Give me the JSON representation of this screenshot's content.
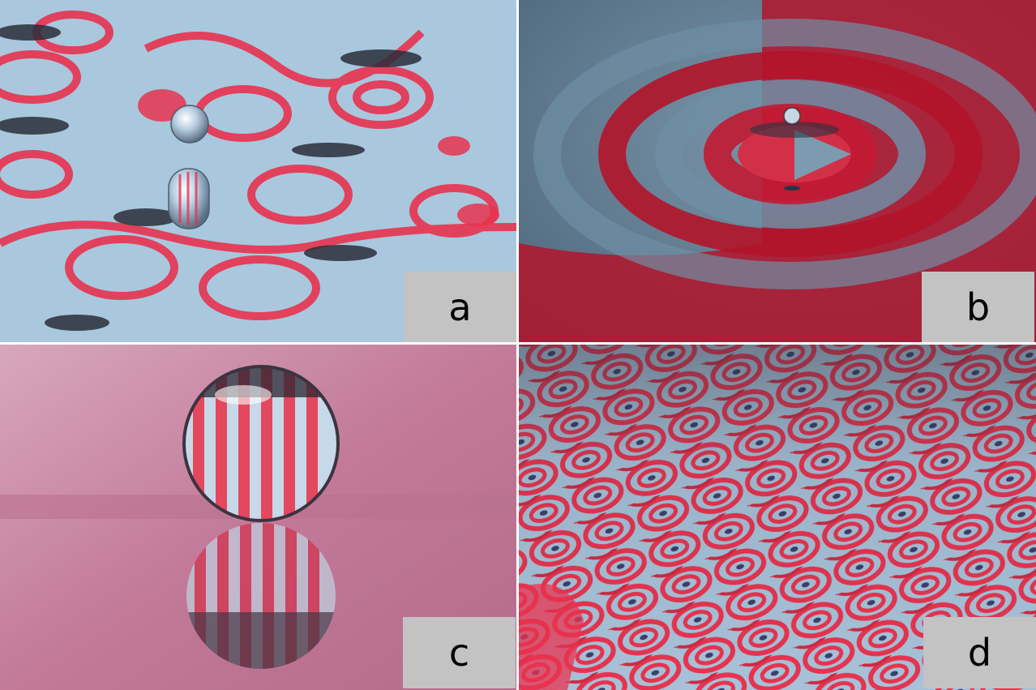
{
  "panels": [
    {
      "id": "a",
      "label": "a"
    },
    {
      "id": "b",
      "label": "b"
    },
    {
      "id": "c",
      "label": "c"
    },
    {
      "id": "d",
      "label": "d"
    }
  ],
  "colors": {
    "background_blue": "#a9c8de",
    "stripe_red": "#e8334f",
    "deep_red": "#b3142a",
    "steel_blue": "#6f8ea4",
    "pink_bg": "#c27a98",
    "label_box": "#c3c3c3"
  }
}
